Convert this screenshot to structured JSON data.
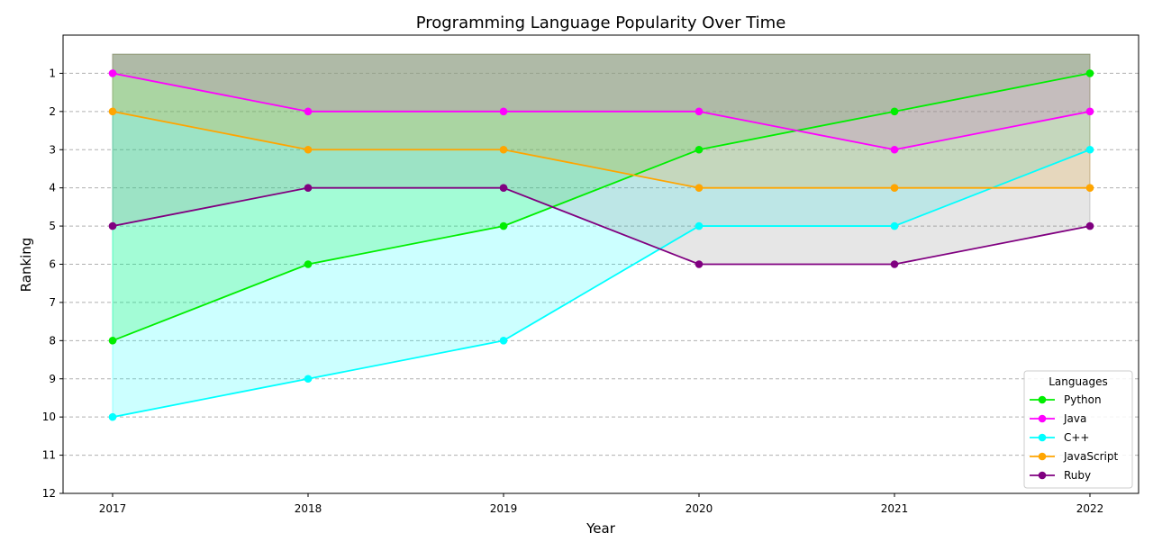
{
  "chart_data": {
    "type": "line",
    "title": "Programming Language Popularity Over Time",
    "xlabel": "Year",
    "ylabel": "Ranking",
    "x": [
      2017,
      2018,
      2019,
      2020,
      2021,
      2022
    ],
    "ylim": [
      12,
      0
    ],
    "y_inverted": true,
    "yticks": [
      1,
      2,
      3,
      4,
      5,
      6,
      7,
      8,
      9,
      10,
      11,
      12
    ],
    "grid": "horizontal dashed",
    "legend": {
      "title": "Languages",
      "placement": "lower-right"
    },
    "fill_baseline": 0.5,
    "series": [
      {
        "name": "Python",
        "color": "#00ee00",
        "fill": "#00ee00",
        "values": [
          8,
          6,
          5,
          3,
          2,
          1
        ]
      },
      {
        "name": "Java",
        "color": "#ff00ff",
        "fill": "#ff00ff",
        "values": [
          1,
          2,
          2,
          2,
          3,
          2
        ]
      },
      {
        "name": "C++",
        "color": "#00ffff",
        "fill": "#00ffff",
        "values": [
          10,
          9,
          8,
          5,
          5,
          3
        ]
      },
      {
        "name": "JavaScript",
        "color": "#ffa500",
        "fill": "#ffa500",
        "values": [
          2,
          3,
          3,
          4,
          4,
          4
        ]
      },
      {
        "name": "Ruby",
        "color": "#800080",
        "fill": "#808080",
        "values": [
          5,
          4,
          4,
          6,
          6,
          5
        ]
      }
    ]
  }
}
